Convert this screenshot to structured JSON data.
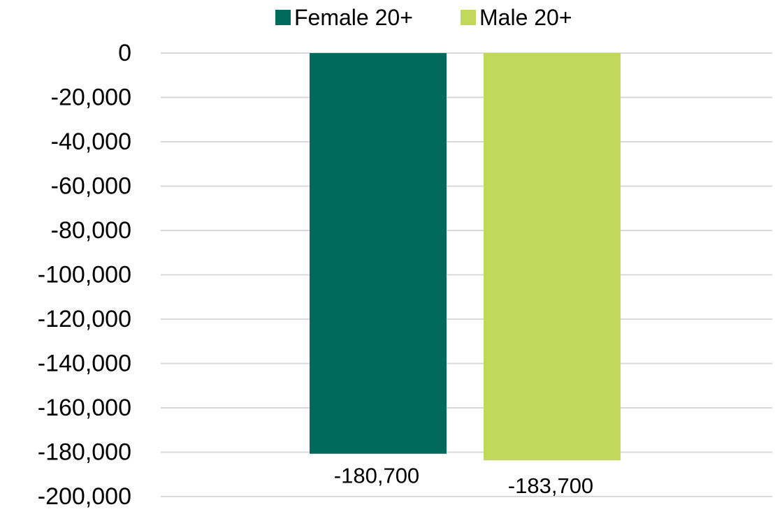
{
  "chart_data": {
    "type": "bar",
    "categories": [
      ""
    ],
    "series": [
      {
        "name": "Female 20+",
        "values": [
          -180700
        ],
        "color": "#006b5d",
        "label": "-180,700"
      },
      {
        "name": "Male 20+",
        "values": [
          -183700
        ],
        "color": "#c2d85a",
        "label": "-183,700"
      }
    ],
    "title": "",
    "xlabel": "",
    "ylabel": "",
    "ylim": [
      -200000,
      0
    ],
    "yticks": [
      0,
      -20000,
      -40000,
      -60000,
      -80000,
      -100000,
      -120000,
      -140000,
      -160000,
      -180000,
      -200000
    ],
    "ytick_labels": [
      "0",
      "-20,000",
      "-40,000",
      "-60,000",
      "-80,000",
      "-100,000",
      "-120,000",
      "-140,000",
      "-160,000",
      "-180,000",
      "-200,000"
    ],
    "grid": true,
    "legend_position": "top-center"
  }
}
